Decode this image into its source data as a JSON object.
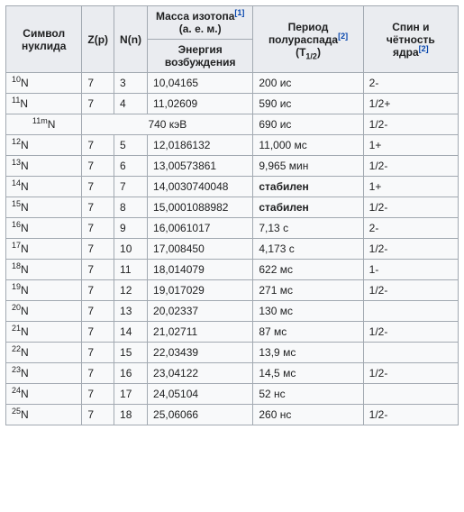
{
  "headers": {
    "symbol": "Символ нуклида",
    "zp": "Z(p)",
    "nn": "N(n)",
    "mass_line1": "Масса изотопа",
    "mass_ref": "[1]",
    "mass_line2": "(а. е. м.)",
    "half_life_line1": "Период полураспада",
    "half_life_ref": "[2]",
    "half_life_line2": "(T",
    "half_life_sub": "1/2",
    "half_life_line3": ")",
    "spin_line1": "Спин и чётность ядра",
    "spin_ref": "[2]",
    "excitation": "Энергия возбуждения"
  },
  "rows": [
    {
      "sym_sup": "10",
      "sym": "N",
      "z": "7",
      "n": "3",
      "mass": "10,04165",
      "hl": "200 ис",
      "spin": "2-"
    },
    {
      "sym_sup": "11",
      "sym": "N",
      "z": "7",
      "n": "4",
      "mass": "11,02609",
      "hl": "590 ис",
      "spin": "1/2+"
    }
  ],
  "isomer": {
    "sym_sup": "11m",
    "sym": "N",
    "exc": "740 кэВ",
    "hl": "690 ис",
    "spin": "1/2-"
  },
  "rows2": [
    {
      "sym_sup": "12",
      "sym": "N",
      "z": "7",
      "n": "5",
      "mass": "12,0186132",
      "hl": "11,000 мс",
      "spin": "1+"
    },
    {
      "sym_sup": "13",
      "sym": "N",
      "z": "7",
      "n": "6",
      "mass": "13,00573861",
      "hl": "9,965 мин",
      "spin": "1/2-"
    },
    {
      "sym_sup": "14",
      "sym": "N",
      "z": "7",
      "n": "7",
      "mass": "14,0030740048",
      "hl": "стабилен",
      "spin": "1+",
      "hl_bold": true
    },
    {
      "sym_sup": "15",
      "sym": "N",
      "z": "7",
      "n": "8",
      "mass": "15,0001088982",
      "hl": "стабилен",
      "spin": "1/2-",
      "hl_bold": true
    },
    {
      "sym_sup": "16",
      "sym": "N",
      "z": "7",
      "n": "9",
      "mass": "16,0061017",
      "hl": "7,13 с",
      "spin": "2-"
    },
    {
      "sym_sup": "17",
      "sym": "N",
      "z": "7",
      "n": "10",
      "mass": "17,008450",
      "hl": "4,173 с",
      "spin": "1/2-"
    },
    {
      "sym_sup": "18",
      "sym": "N",
      "z": "7",
      "n": "11",
      "mass": "18,014079",
      "hl": "622 мс",
      "spin": "1-"
    },
    {
      "sym_sup": "19",
      "sym": "N",
      "z": "7",
      "n": "12",
      "mass": "19,017029",
      "hl": "271 мс",
      "spin": "1/2-"
    },
    {
      "sym_sup": "20",
      "sym": "N",
      "z": "7",
      "n": "13",
      "mass": "20,02337",
      "hl": "130 мс",
      "spin": ""
    },
    {
      "sym_sup": "21",
      "sym": "N",
      "z": "7",
      "n": "14",
      "mass": "21,02711",
      "hl": "87 мс",
      "spin": "1/2-"
    },
    {
      "sym_sup": "22",
      "sym": "N",
      "z": "7",
      "n": "15",
      "mass": "22,03439",
      "hl": "13,9 мс",
      "spin": ""
    },
    {
      "sym_sup": "23",
      "sym": "N",
      "z": "7",
      "n": "16",
      "mass": "23,04122",
      "hl": "14,5 мс",
      "spin": "1/2-"
    },
    {
      "sym_sup": "24",
      "sym": "N",
      "z": "7",
      "n": "17",
      "mass": "24,05104",
      "hl": "52 нс",
      "spin": ""
    },
    {
      "sym_sup": "25",
      "sym": "N",
      "z": "7",
      "n": "18",
      "mass": "25,06066",
      "hl": "260 нс",
      "spin": "1/2-"
    }
  ],
  "colors": {
    "header_bg": "#eaecf0",
    "cell_bg": "#f8f9fa",
    "border": "#a2a9b1",
    "link": "#0645ad"
  }
}
